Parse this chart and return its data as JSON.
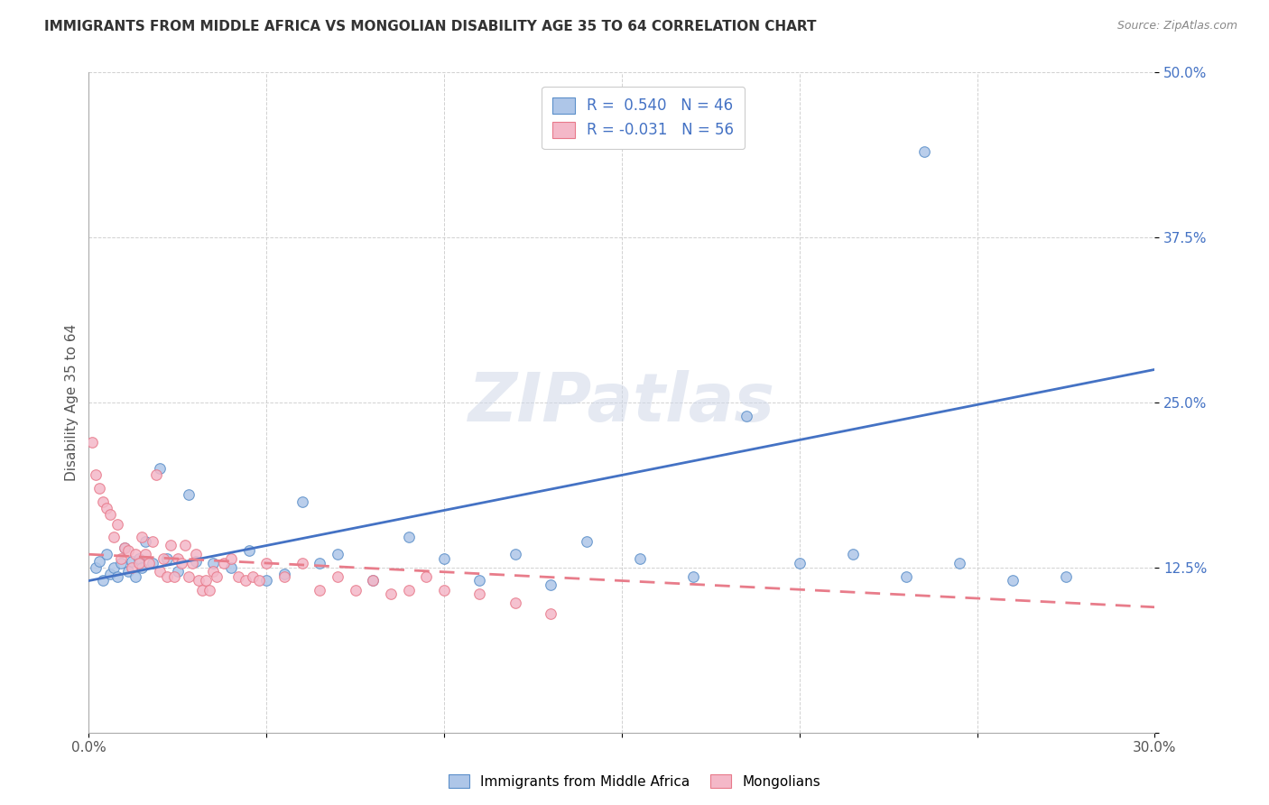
{
  "title": "IMMIGRANTS FROM MIDDLE AFRICA VS MONGOLIAN DISABILITY AGE 35 TO 64 CORRELATION CHART",
  "source": "Source: ZipAtlas.com",
  "ylabel": "Disability Age 35 to 64",
  "xlim": [
    0.0,
    0.3
  ],
  "ylim": [
    0.0,
    0.5
  ],
  "x_ticks": [
    0.0,
    0.05,
    0.1,
    0.15,
    0.2,
    0.25,
    0.3
  ],
  "x_tick_labels": [
    "0.0%",
    "",
    "",
    "",
    "",
    "",
    "30.0%"
  ],
  "y_ticks": [
    0.0,
    0.125,
    0.25,
    0.375,
    0.5
  ],
  "y_tick_labels": [
    "",
    "12.5%",
    "25.0%",
    "37.5%",
    "50.0%"
  ],
  "blue_R": 0.54,
  "blue_N": 46,
  "pink_R": -0.031,
  "pink_N": 56,
  "blue_color": "#aec6e8",
  "pink_color": "#f4b8c8",
  "blue_edge_color": "#5b8fc9",
  "pink_edge_color": "#e8798a",
  "blue_line_color": "#4472c4",
  "pink_line_color": "#e87c8a",
  "watermark": "ZIPatlas",
  "blue_line_x0": 0.0,
  "blue_line_y0": 0.115,
  "blue_line_x1": 0.3,
  "blue_line_y1": 0.275,
  "pink_line_x0": 0.0,
  "pink_line_y0": 0.135,
  "pink_line_x1": 0.3,
  "pink_line_y1": 0.095,
  "blue_scatter_x": [
    0.002,
    0.003,
    0.004,
    0.005,
    0.006,
    0.007,
    0.008,
    0.009,
    0.01,
    0.011,
    0.012,
    0.013,
    0.014,
    0.015,
    0.016,
    0.018,
    0.02,
    0.022,
    0.025,
    0.028,
    0.03,
    0.035,
    0.04,
    0.045,
    0.05,
    0.055,
    0.06,
    0.065,
    0.07,
    0.08,
    0.09,
    0.1,
    0.11,
    0.12,
    0.13,
    0.14,
    0.155,
    0.17,
    0.185,
    0.2,
    0.215,
    0.23,
    0.245,
    0.26,
    0.275,
    0.235
  ],
  "blue_scatter_y": [
    0.125,
    0.13,
    0.115,
    0.135,
    0.12,
    0.125,
    0.118,
    0.128,
    0.14,
    0.122,
    0.13,
    0.118,
    0.132,
    0.125,
    0.145,
    0.128,
    0.2,
    0.132,
    0.122,
    0.18,
    0.13,
    0.128,
    0.125,
    0.138,
    0.115,
    0.12,
    0.175,
    0.128,
    0.135,
    0.115,
    0.148,
    0.132,
    0.115,
    0.135,
    0.112,
    0.145,
    0.132,
    0.118,
    0.24,
    0.128,
    0.135,
    0.118,
    0.128,
    0.115,
    0.118,
    0.44
  ],
  "pink_scatter_x": [
    0.001,
    0.002,
    0.003,
    0.004,
    0.005,
    0.006,
    0.007,
    0.008,
    0.009,
    0.01,
    0.011,
    0.012,
    0.013,
    0.014,
    0.015,
    0.016,
    0.017,
    0.018,
    0.019,
    0.02,
    0.021,
    0.022,
    0.023,
    0.024,
    0.025,
    0.026,
    0.027,
    0.028,
    0.029,
    0.03,
    0.031,
    0.032,
    0.033,
    0.034,
    0.035,
    0.036,
    0.038,
    0.04,
    0.042,
    0.044,
    0.046,
    0.048,
    0.05,
    0.055,
    0.06,
    0.065,
    0.07,
    0.075,
    0.08,
    0.085,
    0.09,
    0.095,
    0.1,
    0.11,
    0.12,
    0.13
  ],
  "pink_scatter_y": [
    0.22,
    0.195,
    0.185,
    0.175,
    0.17,
    0.165,
    0.148,
    0.158,
    0.132,
    0.14,
    0.138,
    0.125,
    0.135,
    0.128,
    0.148,
    0.135,
    0.128,
    0.145,
    0.195,
    0.122,
    0.132,
    0.118,
    0.142,
    0.118,
    0.132,
    0.128,
    0.142,
    0.118,
    0.128,
    0.135,
    0.115,
    0.108,
    0.115,
    0.108,
    0.122,
    0.118,
    0.128,
    0.132,
    0.118,
    0.115,
    0.118,
    0.115,
    0.128,
    0.118,
    0.128,
    0.108,
    0.118,
    0.108,
    0.115,
    0.105,
    0.108,
    0.118,
    0.108,
    0.105,
    0.098,
    0.09
  ],
  "legend_blue_text": "R =  0.540   N = 46",
  "legend_pink_text": "R = -0.031   N = 56",
  "bottom_legend_labels": [
    "Immigrants from Middle Africa",
    "Mongolians"
  ]
}
